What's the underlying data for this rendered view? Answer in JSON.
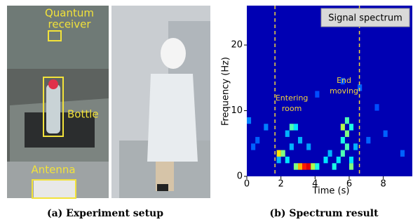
{
  "photos": {
    "caption": "(a) Experiment setup",
    "labels": {
      "receiver": [
        "Quantum",
        "receiver"
      ],
      "bottle": "Bottle",
      "antenna": "Antenna"
    }
  },
  "chart_data": {
    "type": "heatmap",
    "caption": "(b) Spectrum result",
    "legend_label": "Signal spectrum",
    "xlabel": "Time (s)",
    "ylabel": "Frequency (Hz)",
    "xlim": [
      0,
      9.7
    ],
    "ylim": [
      0,
      26
    ],
    "xticks": [
      0,
      2,
      4,
      6,
      8
    ],
    "yticks": [
      0,
      10,
      20
    ],
    "marker_color": "#f2d43c",
    "markers": [
      {
        "x": 1.65,
        "label": [
          "Entering",
          "room"
        ]
      },
      {
        "x": 6.6,
        "label": [
          "End",
          "moving"
        ]
      }
    ],
    "background": 0.05,
    "cells": [
      [
        1.75,
        3,
        0.65
      ],
      [
        2.0,
        3,
        0.5
      ],
      [
        1.75,
        2,
        0.3
      ],
      [
        2.25,
        2,
        0.35
      ],
      [
        3.0,
        1,
        0.7
      ],
      [
        3.25,
        1,
        0.85
      ],
      [
        3.5,
        1,
        0.9
      ],
      [
        2.75,
        1,
        0.5
      ],
      [
        3.75,
        1,
        0.55
      ],
      [
        4.0,
        1,
        0.4
      ],
      [
        2.5,
        4,
        0.3
      ],
      [
        2.5,
        7,
        0.45
      ],
      [
        2.75,
        7,
        0.35
      ],
      [
        2.25,
        6,
        0.3
      ],
      [
        3.0,
        5,
        0.3
      ],
      [
        3.5,
        4,
        0.28
      ],
      [
        4.5,
        2,
        0.35
      ],
      [
        4.75,
        3,
        0.3
      ],
      [
        5.0,
        1,
        0.4
      ],
      [
        5.25,
        2,
        0.35
      ],
      [
        5.5,
        3,
        0.45
      ],
      [
        5.5,
        5,
        0.4
      ],
      [
        5.75,
        6,
        0.5
      ],
      [
        5.75,
        4,
        0.45
      ],
      [
        6.0,
        7,
        0.4
      ],
      [
        5.5,
        7,
        0.55
      ],
      [
        5.75,
        8,
        0.45
      ],
      [
        6.0,
        2,
        0.35
      ],
      [
        6.0,
        1,
        0.5
      ],
      [
        6.25,
        4,
        0.3
      ],
      [
        1.0,
        7,
        0.25
      ],
      [
        0.5,
        5,
        0.22
      ],
      [
        0.0,
        8,
        0.25
      ],
      [
        0.25,
        4,
        0.22
      ],
      [
        7.0,
        5,
        0.22
      ],
      [
        8.0,
        6,
        0.22
      ],
      [
        9.0,
        3,
        0.22
      ],
      [
        7.5,
        10,
        0.2
      ],
      [
        4.0,
        12,
        0.2
      ],
      [
        6.5,
        13,
        0.22
      ],
      [
        5.5,
        14,
        0.2
      ]
    ]
  }
}
